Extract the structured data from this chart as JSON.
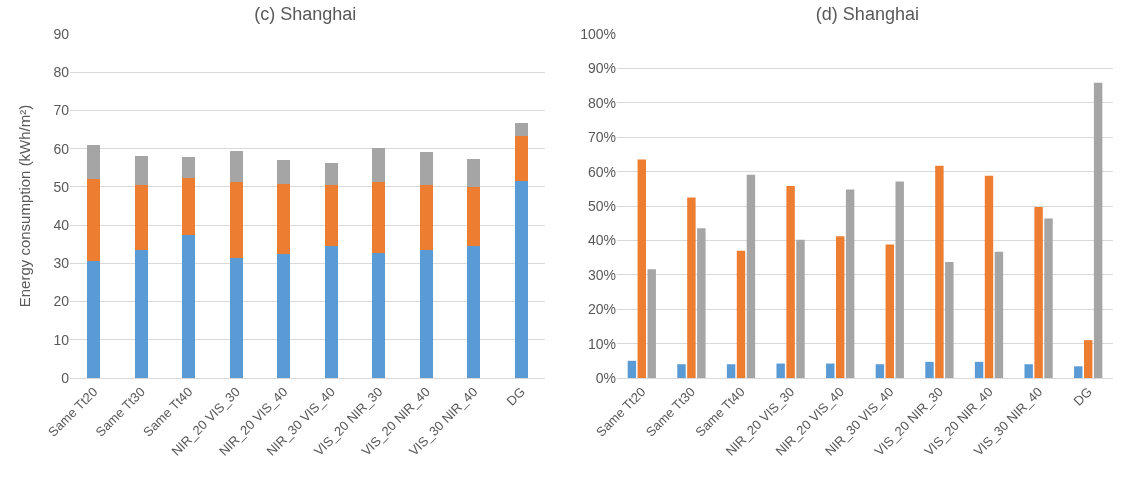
{
  "chart_data": [
    {
      "type": "bar",
      "title": "(c) Shanghai",
      "ylabel": "Energy consumption (kWh/m²)",
      "stacked": true,
      "grid": "y",
      "legend": false,
      "categories": [
        "Same Tt20",
        "Same Tt30",
        "Same Tt40",
        "NIR_20 VIS_30",
        "NIR_20 VIS_40",
        "NIR_30 VIS_40",
        "VIS_20 NIR_30",
        "VIS_20 NIR_40",
        "VIS_30 NIR_40",
        "DG"
      ],
      "ylim": [
        0,
        90
      ],
      "yticks": [
        0,
        10,
        20,
        30,
        40,
        50,
        60,
        70,
        80,
        90
      ],
      "series": [
        {
          "color": "#5b9bd5",
          "values": [
            30.7,
            33.5,
            37.5,
            31.3,
            32.4,
            34.5,
            32.6,
            33.5,
            34.6,
            51.6
          ]
        },
        {
          "color": "#ed7d31",
          "values": [
            21.3,
            17.1,
            14.8,
            20.1,
            18.3,
            15.9,
            18.7,
            17.1,
            15.5,
            11.7
          ]
        },
        {
          "color": "#a5a5a5",
          "values": [
            9,
            7.5,
            5.4,
            7.9,
            6.3,
            5.9,
            8.9,
            8.6,
            7.2,
            3.4
          ]
        }
      ]
    },
    {
      "type": "bar",
      "title": "(d) Shanghai",
      "grid": "y",
      "legend": false,
      "categories": [
        "Same Tt20",
        "Same Tt30",
        "Same Tt40",
        "NIR_20 VIS_30",
        "NIR_20 VIS_40",
        "NIR_30 VIS_40",
        "VIS_20 NIR_30",
        "VIS_20 NIR_40",
        "VIS_30 NIR_40",
        "DG"
      ],
      "ylim": [
        0,
        100
      ],
      "yticks": [
        {
          "value": 0,
          "label": "0%"
        },
        {
          "value": 10,
          "label": "10%"
        },
        {
          "value": 20,
          "label": "20%"
        },
        {
          "value": 30,
          "label": "30%"
        },
        {
          "value": 40,
          "label": "40%"
        },
        {
          "value": 50,
          "label": "50%"
        },
        {
          "value": 60,
          "label": "60%"
        },
        {
          "value": 70,
          "label": "70%"
        },
        {
          "value": 80,
          "label": "80%"
        },
        {
          "value": 90,
          "label": "90%"
        },
        {
          "value": 100,
          "label": "100%"
        }
      ],
      "series": [
        {
          "color": "#5b9bd5",
          "values": [
            5,
            4,
            4,
            4.2,
            4.2,
            4,
            4.7,
            4.7,
            4,
            3.4
          ]
        },
        {
          "color": "#ed7d31",
          "values": [
            63.5,
            52.5,
            37,
            55.8,
            41.2,
            38.8,
            61.7,
            58.8,
            49.7,
            11
          ]
        },
        {
          "color": "#a5a5a5",
          "values": [
            31.6,
            43.5,
            59.1,
            40.2,
            54.8,
            57.1,
            33.7,
            36.7,
            46.4,
            85.8
          ]
        }
      ]
    }
  ]
}
